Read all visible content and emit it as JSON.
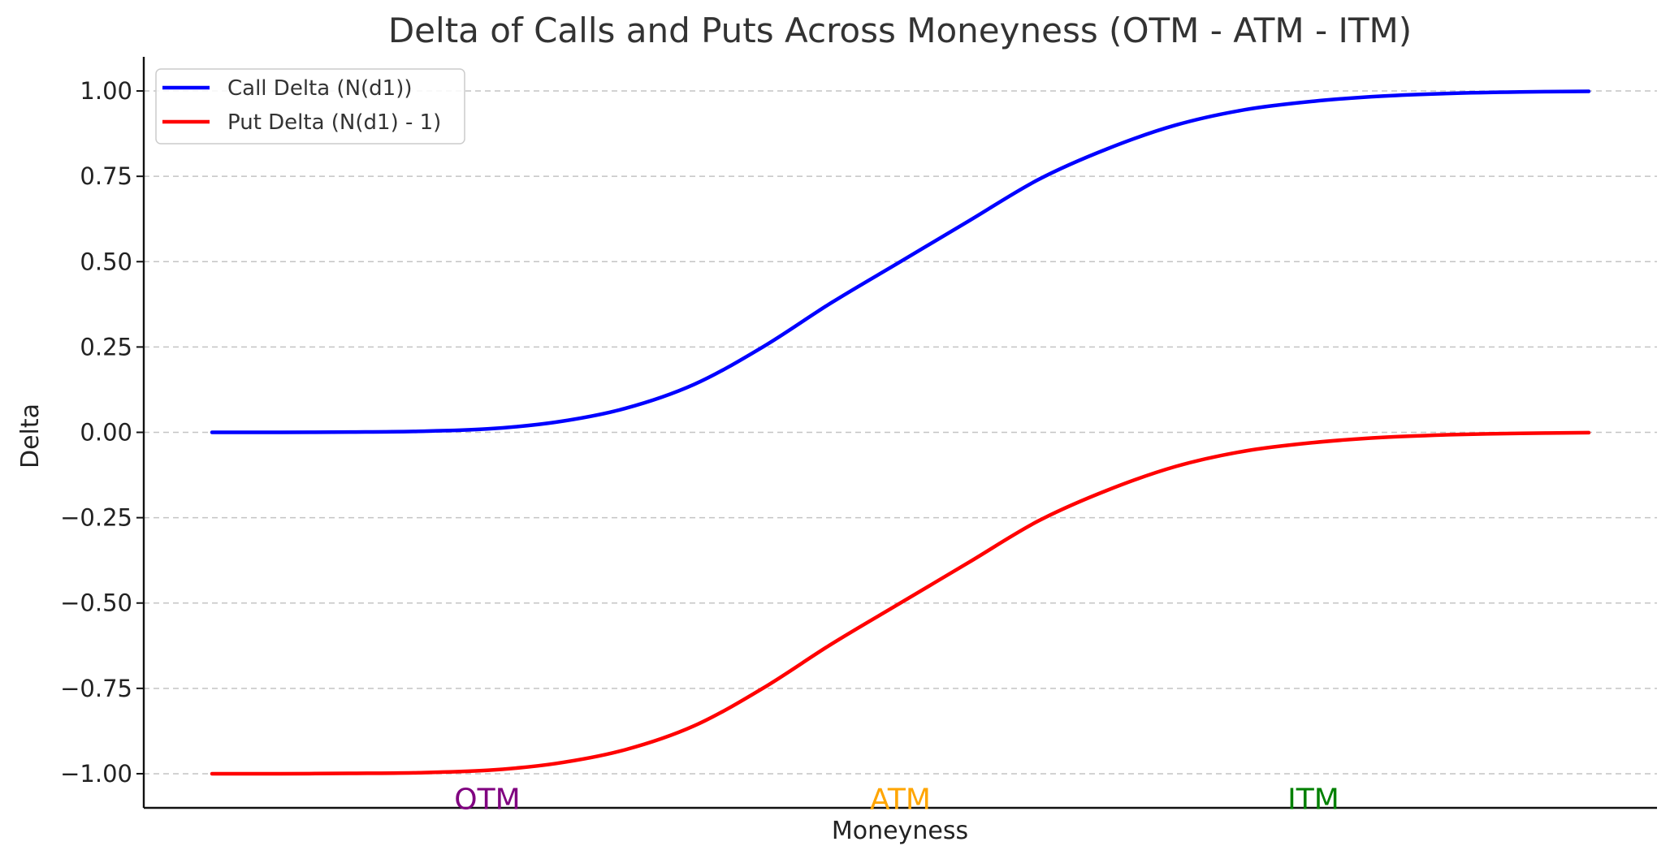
{
  "chart_data": {
    "type": "line",
    "title": "Delta of Calls and Puts Across Moneyness (OTM - ATM - ITM)",
    "xlabel": "Moneyness",
    "ylabel": "Delta",
    "ylim": [
      -1.1,
      1.1
    ],
    "yticks": [
      1.0,
      0.75,
      0.5,
      0.25,
      0.0,
      -0.25,
      -0.5,
      -0.75,
      -1.0
    ],
    "ytick_labels": [
      "1.00",
      "0.75",
      "0.50",
      "0.25",
      "0.00",
      "−0.25",
      "−0.50",
      "−0.75",
      "−1.00"
    ],
    "grid": "horizontal dashed",
    "legend_position": "top-left",
    "x": [
      0.0,
      0.05,
      0.1,
      0.15,
      0.2,
      0.25,
      0.3,
      0.35,
      0.4,
      0.45,
      0.5,
      0.55,
      0.6,
      0.65,
      0.7,
      0.75,
      0.8,
      0.85,
      0.9,
      0.95,
      1.0
    ],
    "series": [
      {
        "name": "Call Delta (N(d1))",
        "color": "#0000ff",
        "values": [
          0.0,
          0.0,
          0.001,
          0.003,
          0.01,
          0.03,
          0.07,
          0.14,
          0.25,
          0.38,
          0.5,
          0.62,
          0.74,
          0.83,
          0.9,
          0.945,
          0.97,
          0.985,
          0.993,
          0.997,
          0.999
        ]
      },
      {
        "name": "Put Delta (N(d1) - 1)",
        "color": "#ff0000",
        "values": [
          -1.0,
          -1.0,
          -0.999,
          -0.997,
          -0.99,
          -0.97,
          -0.93,
          -0.86,
          -0.75,
          -0.62,
          -0.5,
          -0.38,
          -0.26,
          -0.17,
          -0.1,
          -0.055,
          -0.03,
          -0.015,
          -0.007,
          -0.003,
          -0.001
        ]
      }
    ],
    "annotations": [
      {
        "text": "OTM",
        "x": 0.2,
        "y": -1.07,
        "color": "#800080"
      },
      {
        "text": "ATM",
        "x": 0.5,
        "y": -1.07,
        "color": "#ffa500"
      },
      {
        "text": "ITM",
        "x": 0.8,
        "y": -1.07,
        "color": "#008000"
      }
    ]
  }
}
